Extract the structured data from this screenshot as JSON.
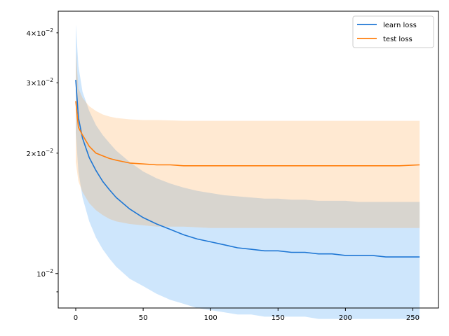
{
  "chart_data": {
    "type": "line",
    "title": "",
    "xlabel": "",
    "ylabel": "",
    "yscale": "log",
    "xlim": [
      -13,
      269
    ],
    "ylim": [
      0.0082,
      0.0453
    ],
    "grid": false,
    "legend_position": "top-right",
    "x_ticks": [
      0,
      50,
      100,
      150,
      200,
      250
    ],
    "x_tick_labels": [
      "0",
      "50",
      "100",
      "150",
      "200",
      "250"
    ],
    "y_major_ticks": [
      0.01
    ],
    "y_major_tick_labels": [
      "10^{-2}"
    ],
    "y_minor_ticks_labeled": [
      0.02,
      0.03,
      0.04
    ],
    "y_minor_tick_labels": [
      "2×10^{-2}",
      "3×10^{-2}",
      "4×10^{-2}"
    ],
    "y_minor_ticks_unlabeled": [
      0.009
    ],
    "series": [
      {
        "name": "learn loss",
        "color": "#1f77d4",
        "band_color": "#1f8ff0",
        "points": [
          [
            0,
            0.0305
          ],
          [
            2,
            0.0245
          ],
          [
            5,
            0.0218
          ],
          [
            10,
            0.0195
          ],
          [
            15,
            0.0181
          ],
          [
            20,
            0.017
          ],
          [
            25,
            0.0162
          ],
          [
            30,
            0.0155
          ],
          [
            40,
            0.0145
          ],
          [
            50,
            0.0138
          ],
          [
            60,
            0.0133
          ],
          [
            70,
            0.0129
          ],
          [
            80,
            0.0125
          ],
          [
            90,
            0.0122
          ],
          [
            100,
            0.012
          ],
          [
            110,
            0.0118
          ],
          [
            120,
            0.0116
          ],
          [
            130,
            0.0115
          ],
          [
            140,
            0.0114
          ],
          [
            150,
            0.0114
          ],
          [
            160,
            0.0113
          ],
          [
            170,
            0.0113
          ],
          [
            180,
            0.0112
          ],
          [
            190,
            0.0112
          ],
          [
            200,
            0.0111
          ],
          [
            210,
            0.0111
          ],
          [
            220,
            0.0111
          ],
          [
            230,
            0.011
          ],
          [
            240,
            0.011
          ],
          [
            250,
            0.011
          ],
          [
            255,
            0.011
          ]
        ],
        "band_lower": [
          [
            0,
            0.0225
          ],
          [
            2,
            0.018
          ],
          [
            5,
            0.0155
          ],
          [
            10,
            0.0135
          ],
          [
            15,
            0.0123
          ],
          [
            20,
            0.0115
          ],
          [
            25,
            0.0109
          ],
          [
            30,
            0.0104
          ],
          [
            40,
            0.0097
          ],
          [
            50,
            0.0093
          ],
          [
            60,
            0.0089
          ],
          [
            70,
            0.0086
          ],
          [
            80,
            0.0084
          ],
          [
            90,
            0.0082
          ],
          [
            100,
            0.0081
          ],
          [
            110,
            0.008
          ],
          [
            120,
            0.0079
          ],
          [
            130,
            0.0079
          ],
          [
            140,
            0.0078
          ],
          [
            150,
            0.0078
          ],
          [
            160,
            0.0078
          ],
          [
            170,
            0.0078
          ],
          [
            180,
            0.0077
          ],
          [
            190,
            0.0077
          ],
          [
            200,
            0.0077
          ],
          [
            210,
            0.0077
          ],
          [
            220,
            0.0077
          ],
          [
            230,
            0.0077
          ],
          [
            240,
            0.0077
          ],
          [
            250,
            0.0077
          ],
          [
            255,
            0.0077
          ]
        ],
        "band_upper": [
          [
            0,
            0.042
          ],
          [
            2,
            0.033
          ],
          [
            5,
            0.0285
          ],
          [
            10,
            0.0255
          ],
          [
            15,
            0.0235
          ],
          [
            20,
            0.0222
          ],
          [
            25,
            0.0212
          ],
          [
            30,
            0.0203
          ],
          [
            40,
            0.019
          ],
          [
            50,
            0.018
          ],
          [
            60,
            0.0173
          ],
          [
            70,
            0.0168
          ],
          [
            80,
            0.0164
          ],
          [
            90,
            0.0161
          ],
          [
            100,
            0.0159
          ],
          [
            110,
            0.0157
          ],
          [
            120,
            0.0156
          ],
          [
            130,
            0.0155
          ],
          [
            140,
            0.0154
          ],
          [
            150,
            0.0154
          ],
          [
            160,
            0.0153
          ],
          [
            170,
            0.0153
          ],
          [
            180,
            0.0152
          ],
          [
            190,
            0.0152
          ],
          [
            200,
            0.0152
          ],
          [
            210,
            0.0151
          ],
          [
            220,
            0.0151
          ],
          [
            230,
            0.0151
          ],
          [
            240,
            0.0151
          ],
          [
            250,
            0.0151
          ],
          [
            255,
            0.0151
          ]
        ]
      },
      {
        "name": "test loss",
        "color": "#ff7f0e",
        "band_color": "#ff9933",
        "points": [
          [
            0,
            0.027
          ],
          [
            2,
            0.0232
          ],
          [
            5,
            0.0222
          ],
          [
            10,
            0.0208
          ],
          [
            15,
            0.02
          ],
          [
            20,
            0.0197
          ],
          [
            25,
            0.0194
          ],
          [
            30,
            0.0192
          ],
          [
            40,
            0.0189
          ],
          [
            50,
            0.0188
          ],
          [
            60,
            0.0187
          ],
          [
            70,
            0.0187
          ],
          [
            80,
            0.0186
          ],
          [
            90,
            0.0186
          ],
          [
            100,
            0.0186
          ],
          [
            120,
            0.0186
          ],
          [
            140,
            0.0186
          ],
          [
            160,
            0.0186
          ],
          [
            180,
            0.0186
          ],
          [
            200,
            0.0186
          ],
          [
            220,
            0.0186
          ],
          [
            240,
            0.0186
          ],
          [
            255,
            0.0187
          ]
        ],
        "band_lower": [
          [
            0,
            0.019
          ],
          [
            2,
            0.017
          ],
          [
            5,
            0.016
          ],
          [
            10,
            0.015
          ],
          [
            15,
            0.0144
          ],
          [
            20,
            0.014
          ],
          [
            25,
            0.0137
          ],
          [
            30,
            0.0135
          ],
          [
            40,
            0.0133
          ],
          [
            50,
            0.0132
          ],
          [
            60,
            0.0131
          ],
          [
            80,
            0.0131
          ],
          [
            100,
            0.013
          ],
          [
            130,
            0.013
          ],
          [
            160,
            0.013
          ],
          [
            200,
            0.013
          ],
          [
            230,
            0.013
          ],
          [
            255,
            0.013
          ]
        ],
        "band_upper": [
          [
            0,
            0.036
          ],
          [
            2,
            0.029
          ],
          [
            5,
            0.0275
          ],
          [
            10,
            0.0262
          ],
          [
            15,
            0.0255
          ],
          [
            20,
            0.025
          ],
          [
            25,
            0.0247
          ],
          [
            30,
            0.0245
          ],
          [
            40,
            0.0243
          ],
          [
            50,
            0.0242
          ],
          [
            60,
            0.0242
          ],
          [
            80,
            0.0241
          ],
          [
            100,
            0.0241
          ],
          [
            130,
            0.0241
          ],
          [
            160,
            0.0241
          ],
          [
            200,
            0.0241
          ],
          [
            230,
            0.0241
          ],
          [
            255,
            0.0241
          ]
        ]
      }
    ]
  }
}
